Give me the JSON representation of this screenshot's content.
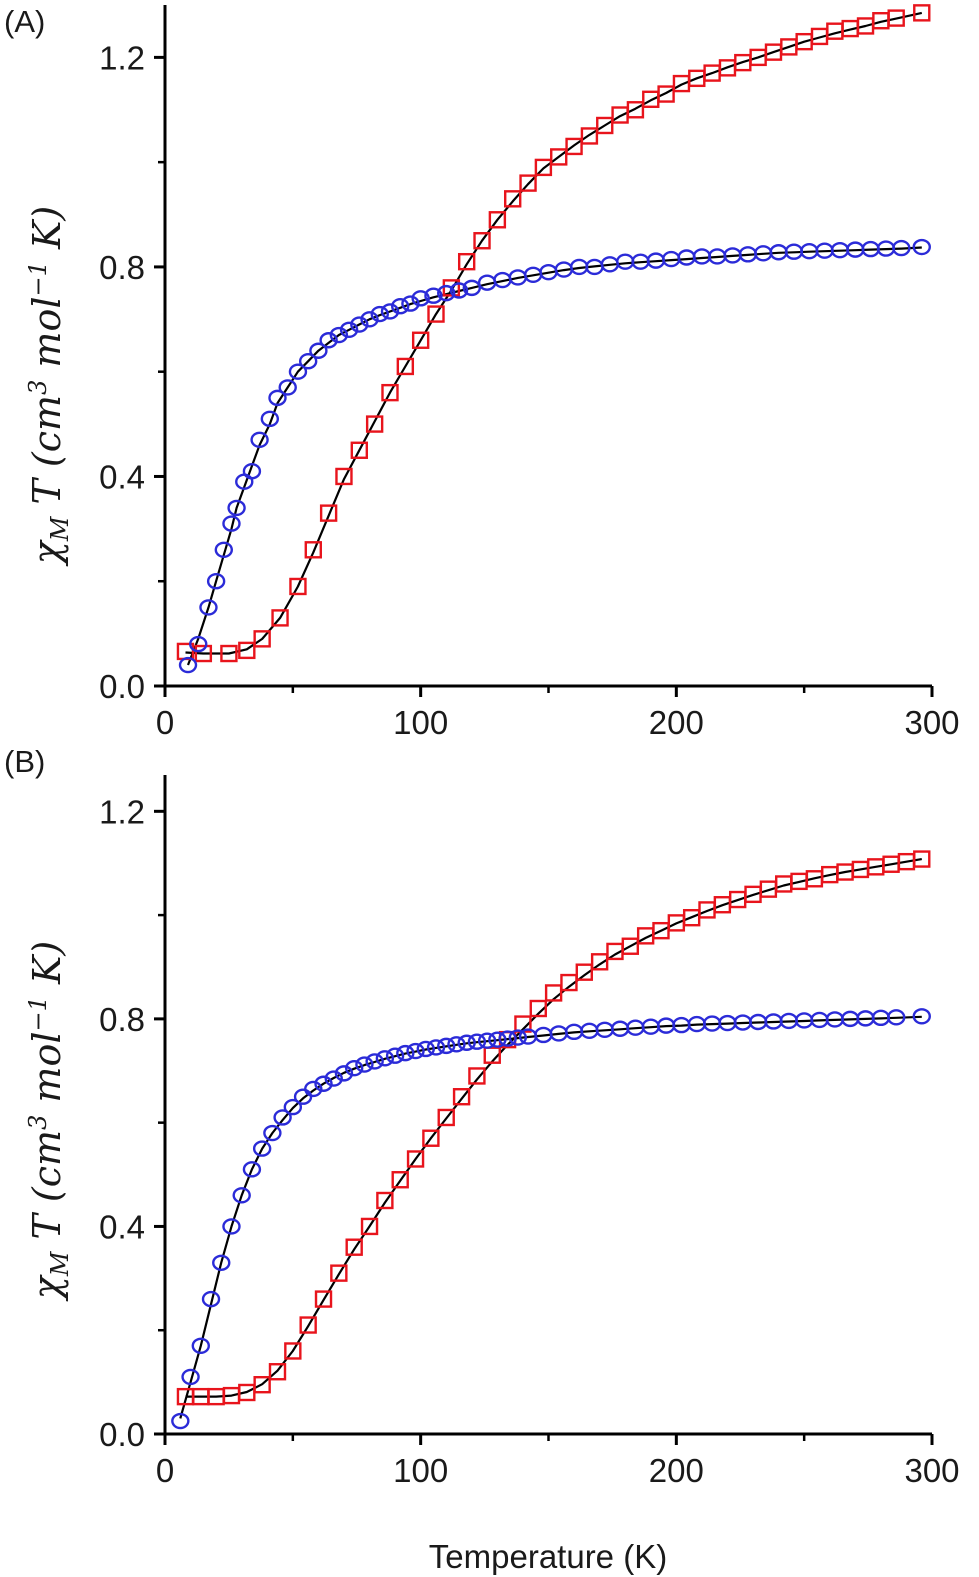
{
  "figure": {
    "xlabel": "Temperature (K)"
  },
  "chart_data": [
    {
      "panel": "(A)",
      "type": "scatter",
      "xlim": [
        0,
        300
      ],
      "ylim": [
        0,
        1.3
      ],
      "xticks": [
        "0",
        "100",
        "200",
        "300"
      ],
      "yticks": [
        "0.0",
        "0.4",
        "0.8",
        "1.2"
      ],
      "xtick_values": [
        0,
        100,
        200,
        300
      ],
      "ytick_values": [
        0,
        0.4,
        0.8,
        1.2
      ],
      "ylabel": "χM T (cm3 mol−1 K)",
      "ylabel_parts": {
        "chi": "χ",
        "chi_sub": "M",
        "t": " T ",
        "open": "(cm",
        "sup1": "3",
        "mid": " mol",
        "sup2": "−1",
        "close": " K)"
      },
      "xlabel": "",
      "grid": false,
      "series": [
        {
          "marker": "square",
          "color": "#e8141c",
          "x": [
            8,
            15,
            25,
            32,
            38,
            45,
            52,
            58,
            64,
            70,
            76,
            82,
            88,
            94,
            100,
            106,
            112,
            118,
            124,
            130,
            136,
            142,
            148,
            154,
            160,
            166,
            172,
            178,
            184,
            190,
            196,
            202,
            208,
            214,
            220,
            226,
            232,
            238,
            244,
            250,
            256,
            262,
            268,
            274,
            280,
            286,
            296
          ],
          "y": [
            0.066,
            0.062,
            0.062,
            0.068,
            0.09,
            0.13,
            0.19,
            0.26,
            0.33,
            0.4,
            0.45,
            0.5,
            0.56,
            0.61,
            0.66,
            0.71,
            0.76,
            0.81,
            0.85,
            0.89,
            0.93,
            0.96,
            0.99,
            1.01,
            1.03,
            1.05,
            1.07,
            1.09,
            1.1,
            1.12,
            1.13,
            1.15,
            1.16,
            1.17,
            1.18,
            1.19,
            1.2,
            1.21,
            1.22,
            1.23,
            1.24,
            1.25,
            1.255,
            1.26,
            1.27,
            1.275,
            1.285
          ]
        },
        {
          "marker": "circle",
          "color": "#2b2bd8",
          "x": [
            9,
            13,
            17,
            20,
            23,
            26,
            28,
            31,
            34,
            37,
            41,
            44,
            48,
            52,
            56,
            60,
            64,
            68,
            72,
            76,
            80,
            84,
            88,
            92,
            96,
            100,
            105,
            110,
            115,
            120,
            126,
            132,
            138,
            144,
            150,
            156,
            162,
            168,
            174,
            180,
            186,
            192,
            198,
            204,
            210,
            216,
            222,
            228,
            234,
            240,
            246,
            252,
            258,
            264,
            270,
            276,
            282,
            288,
            296
          ],
          "y": [
            0.04,
            0.08,
            0.15,
            0.2,
            0.26,
            0.31,
            0.34,
            0.39,
            0.41,
            0.47,
            0.51,
            0.55,
            0.57,
            0.6,
            0.62,
            0.64,
            0.66,
            0.67,
            0.68,
            0.69,
            0.7,
            0.71,
            0.715,
            0.725,
            0.73,
            0.74,
            0.745,
            0.75,
            0.755,
            0.76,
            0.77,
            0.775,
            0.78,
            0.785,
            0.79,
            0.795,
            0.8,
            0.8,
            0.805,
            0.81,
            0.81,
            0.812,
            0.815,
            0.818,
            0.82,
            0.82,
            0.822,
            0.824,
            0.826,
            0.828,
            0.829,
            0.83,
            0.831,
            0.832,
            0.833,
            0.834,
            0.835,
            0.836,
            0.838
          ]
        }
      ],
      "fit_lines": [
        {
          "color": "#000000",
          "x": [
            8,
            15,
            25,
            32,
            38,
            45,
            52,
            58,
            64,
            70,
            76,
            82,
            88,
            94,
            100,
            106,
            112,
            118,
            124,
            130,
            136,
            142,
            148,
            154,
            160,
            166,
            172,
            178,
            184,
            190,
            196,
            202,
            208,
            214,
            220,
            226,
            232,
            238,
            244,
            250,
            256,
            262,
            268,
            274,
            280,
            286,
            296
          ],
          "y": [
            0.064,
            0.062,
            0.062,
            0.07,
            0.09,
            0.13,
            0.19,
            0.255,
            0.325,
            0.395,
            0.45,
            0.505,
            0.56,
            0.61,
            0.66,
            0.71,
            0.755,
            0.805,
            0.85,
            0.89,
            0.925,
            0.958,
            0.988,
            1.01,
            1.032,
            1.052,
            1.07,
            1.088,
            1.102,
            1.118,
            1.132,
            1.148,
            1.16,
            1.17,
            1.181,
            1.191,
            1.2,
            1.21,
            1.22,
            1.23,
            1.238,
            1.246,
            1.253,
            1.26,
            1.268,
            1.274,
            1.285
          ]
        },
        {
          "color": "#000000",
          "x": [
            9,
            13,
            17,
            20,
            23,
            26,
            28,
            31,
            34,
            37,
            41,
            44,
            48,
            52,
            56,
            60,
            64,
            68,
            72,
            76,
            80,
            84,
            88,
            92,
            96,
            100,
            105,
            110,
            115,
            120,
            126,
            132,
            138,
            144,
            150,
            156,
            162,
            168,
            174,
            180,
            186,
            192,
            198,
            204,
            210,
            216,
            222,
            228,
            234,
            240,
            246,
            252,
            258,
            264,
            270,
            276,
            282,
            288,
            296
          ],
          "y": [
            0.04,
            0.09,
            0.15,
            0.2,
            0.25,
            0.3,
            0.34,
            0.38,
            0.42,
            0.46,
            0.5,
            0.54,
            0.57,
            0.6,
            0.62,
            0.64,
            0.655,
            0.67,
            0.68,
            0.69,
            0.7,
            0.708,
            0.715,
            0.722,
            0.729,
            0.735,
            0.742,
            0.748,
            0.754,
            0.76,
            0.767,
            0.773,
            0.779,
            0.784,
            0.789,
            0.794,
            0.798,
            0.801,
            0.804,
            0.807,
            0.809,
            0.811,
            0.813,
            0.815,
            0.817,
            0.819,
            0.821,
            0.823,
            0.825,
            0.827,
            0.828,
            0.829,
            0.83,
            0.831,
            0.832,
            0.833,
            0.834,
            0.835,
            0.837
          ]
        }
      ]
    },
    {
      "panel": "(B)",
      "type": "scatter",
      "xlim": [
        0,
        300
      ],
      "ylim": [
        0,
        1.27
      ],
      "xticks": [
        "0",
        "100",
        "200",
        "300"
      ],
      "yticks": [
        "0.0",
        "0.4",
        "0.8",
        "1.2"
      ],
      "xtick_values": [
        0,
        100,
        200,
        300
      ],
      "ytick_values": [
        0,
        0.4,
        0.8,
        1.2
      ],
      "ylabel": "χM T (cm3 mol−1 K)",
      "ylabel_parts": {
        "chi": "χ",
        "chi_sub": "M",
        "t": " T ",
        "open": "(cm",
        "sup1": "3",
        "mid": " mol",
        "sup2": "−1",
        "close": " K)"
      },
      "xlabel": "Temperature (K)",
      "grid": false,
      "series": [
        {
          "marker": "square",
          "color": "#e8141c",
          "x": [
            8,
            14,
            20,
            26,
            32,
            38,
            44,
            50,
            56,
            62,
            68,
            74,
            80,
            86,
            92,
            98,
            104,
            110,
            116,
            122,
            128,
            134,
            140,
            146,
            152,
            158,
            164,
            170,
            176,
            182,
            188,
            194,
            200,
            206,
            212,
            218,
            224,
            230,
            236,
            242,
            248,
            254,
            260,
            266,
            272,
            278,
            284,
            290,
            296
          ],
          "y": [
            0.072,
            0.072,
            0.072,
            0.074,
            0.08,
            0.095,
            0.12,
            0.16,
            0.21,
            0.26,
            0.31,
            0.36,
            0.4,
            0.45,
            0.49,
            0.53,
            0.57,
            0.61,
            0.65,
            0.69,
            0.73,
            0.76,
            0.79,
            0.82,
            0.85,
            0.87,
            0.89,
            0.91,
            0.93,
            0.94,
            0.96,
            0.97,
            0.985,
            0.995,
            1.01,
            1.02,
            1.03,
            1.04,
            1.05,
            1.06,
            1.065,
            1.07,
            1.078,
            1.083,
            1.088,
            1.093,
            1.098,
            1.103,
            1.108
          ]
        },
        {
          "marker": "circle",
          "color": "#2b2bd8",
          "x": [
            6,
            10,
            14,
            18,
            22,
            26,
            30,
            34,
            38,
            42,
            46,
            50,
            54,
            58,
            62,
            66,
            70,
            74,
            78,
            82,
            86,
            90,
            94,
            98,
            102,
            106,
            110,
            114,
            118,
            122,
            126,
            130,
            134,
            138,
            142,
            148,
            154,
            160,
            166,
            172,
            178,
            184,
            190,
            196,
            202,
            208,
            214,
            220,
            226,
            232,
            238,
            244,
            250,
            256,
            262,
            268,
            274,
            280,
            286,
            296
          ],
          "y": [
            0.025,
            0.11,
            0.17,
            0.26,
            0.33,
            0.4,
            0.46,
            0.51,
            0.55,
            0.58,
            0.61,
            0.63,
            0.65,
            0.665,
            0.675,
            0.685,
            0.695,
            0.705,
            0.712,
            0.718,
            0.724,
            0.729,
            0.734,
            0.738,
            0.742,
            0.745,
            0.748,
            0.751,
            0.754,
            0.756,
            0.758,
            0.76,
            0.762,
            0.764,
            0.766,
            0.769,
            0.772,
            0.775,
            0.777,
            0.779,
            0.781,
            0.783,
            0.785,
            0.787,
            0.788,
            0.79,
            0.791,
            0.792,
            0.793,
            0.794,
            0.795,
            0.796,
            0.797,
            0.798,
            0.799,
            0.8,
            0.801,
            0.802,
            0.803,
            0.805
          ]
        }
      ],
      "fit_lines": [
        {
          "color": "#000000",
          "x": [
            8,
            14,
            20,
            26,
            32,
            38,
            44,
            50,
            56,
            62,
            68,
            74,
            80,
            86,
            92,
            98,
            104,
            110,
            116,
            122,
            128,
            134,
            140,
            146,
            152,
            158,
            164,
            170,
            176,
            182,
            188,
            194,
            200,
            206,
            212,
            218,
            224,
            230,
            236,
            242,
            248,
            254,
            260,
            266,
            272,
            278,
            284,
            290,
            296
          ],
          "y": [
            0.072,
            0.072,
            0.072,
            0.074,
            0.081,
            0.096,
            0.122,
            0.16,
            0.208,
            0.258,
            0.308,
            0.356,
            0.4,
            0.446,
            0.488,
            0.53,
            0.57,
            0.608,
            0.646,
            0.683,
            0.718,
            0.75,
            0.78,
            0.81,
            0.838,
            0.862,
            0.884,
            0.905,
            0.924,
            0.94,
            0.956,
            0.97,
            0.984,
            0.996,
            1.008,
            1.019,
            1.029,
            1.039,
            1.048,
            1.057,
            1.064,
            1.071,
            1.077,
            1.083,
            1.088,
            1.093,
            1.098,
            1.103,
            1.108
          ]
        },
        {
          "color": "#000000",
          "x": [
            6,
            10,
            14,
            18,
            22,
            26,
            30,
            34,
            38,
            42,
            46,
            50,
            54,
            58,
            62,
            66,
            70,
            74,
            78,
            82,
            86,
            90,
            94,
            98,
            102,
            106,
            110,
            114,
            118,
            122,
            126,
            130,
            134,
            138,
            142,
            148,
            154,
            160,
            166,
            172,
            178,
            184,
            190,
            196,
            202,
            208,
            214,
            220,
            226,
            232,
            238,
            244,
            250,
            256,
            262,
            268,
            274,
            280,
            286,
            296
          ],
          "y": [
            0.03,
            0.1,
            0.17,
            0.25,
            0.33,
            0.4,
            0.46,
            0.51,
            0.55,
            0.58,
            0.605,
            0.628,
            0.647,
            0.662,
            0.675,
            0.686,
            0.696,
            0.704,
            0.711,
            0.717,
            0.723,
            0.728,
            0.733,
            0.737,
            0.741,
            0.744,
            0.747,
            0.75,
            0.753,
            0.755,
            0.757,
            0.759,
            0.761,
            0.763,
            0.765,
            0.768,
            0.771,
            0.774,
            0.776,
            0.778,
            0.78,
            0.782,
            0.784,
            0.786,
            0.787,
            0.789,
            0.79,
            0.791,
            0.792,
            0.793,
            0.794,
            0.795,
            0.796,
            0.797,
            0.798,
            0.799,
            0.8,
            0.801,
            0.802,
            0.804
          ]
        }
      ]
    }
  ]
}
